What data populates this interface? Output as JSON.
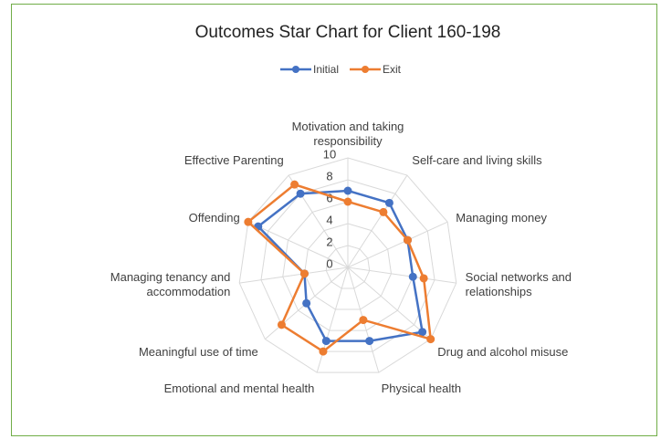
{
  "chart_data": {
    "type": "radar",
    "title": "Outcomes Star Chart for Client 160-198",
    "categories": [
      "Motivation and taking responsibility",
      "Self-care and living skills",
      "Managing money",
      "Social networks and relationships",
      "Drug and alcohol misuse",
      "Physical health",
      "Emotional and mental health",
      "Meaningful use of time",
      "Managing tenancy and accommodation",
      "Offending",
      "Effective Parenting"
    ],
    "series": [
      {
        "name": "Initial",
        "color": "#4472c4",
        "values": [
          7,
          7,
          6,
          6,
          9,
          7,
          7,
          5,
          4,
          9,
          8
        ]
      },
      {
        "name": "Exit",
        "color": "#ed7d31",
        "values": [
          6,
          6,
          6,
          7,
          10,
          5,
          8,
          8,
          4,
          10,
          9
        ]
      }
    ],
    "ylim": [
      0,
      10
    ],
    "yticks": [
      0,
      2,
      4,
      6,
      8,
      10
    ],
    "grid": true,
    "legend": "top"
  }
}
